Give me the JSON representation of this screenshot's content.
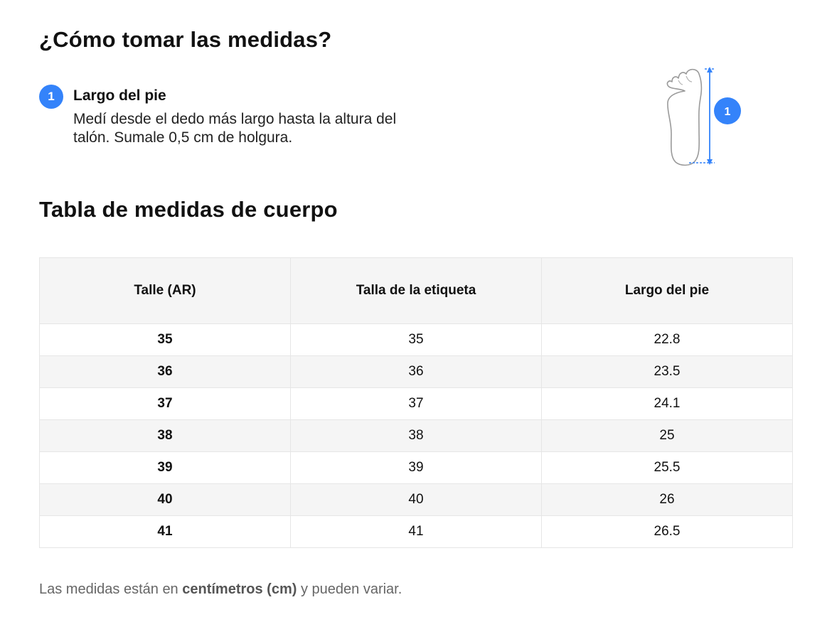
{
  "instructions": {
    "heading": "¿Cómo tomar las medidas?",
    "step": {
      "number": "1",
      "title": "Largo del pie",
      "description": "Medí desde el dedo más largo hasta la altura del talón. Sumale 0,5 cm de holgura."
    },
    "diagram": {
      "icon": "foot-outline-icon",
      "marker_number": "1"
    }
  },
  "table": {
    "heading": "Tabla de medidas de cuerpo",
    "columns": [
      "Talle (AR)",
      "Talla de la etiqueta",
      "Largo del pie"
    ],
    "rows": [
      [
        "35",
        "35",
        "22.8"
      ],
      [
        "36",
        "36",
        "23.5"
      ],
      [
        "37",
        "37",
        "24.1"
      ],
      [
        "38",
        "38",
        "25"
      ],
      [
        "39",
        "39",
        "25.5"
      ],
      [
        "40",
        "40",
        "26"
      ],
      [
        "41",
        "41",
        "26.5"
      ]
    ]
  },
  "footer": {
    "prefix": "Las medidas están en",
    "unit": "centímetros (cm)",
    "suffix": "y pueden variar."
  },
  "colors": {
    "accent": "#3483fa",
    "text": "#111111",
    "muted": "#666666",
    "stripe": "#f5f5f5",
    "border": "#e6e6e6"
  }
}
